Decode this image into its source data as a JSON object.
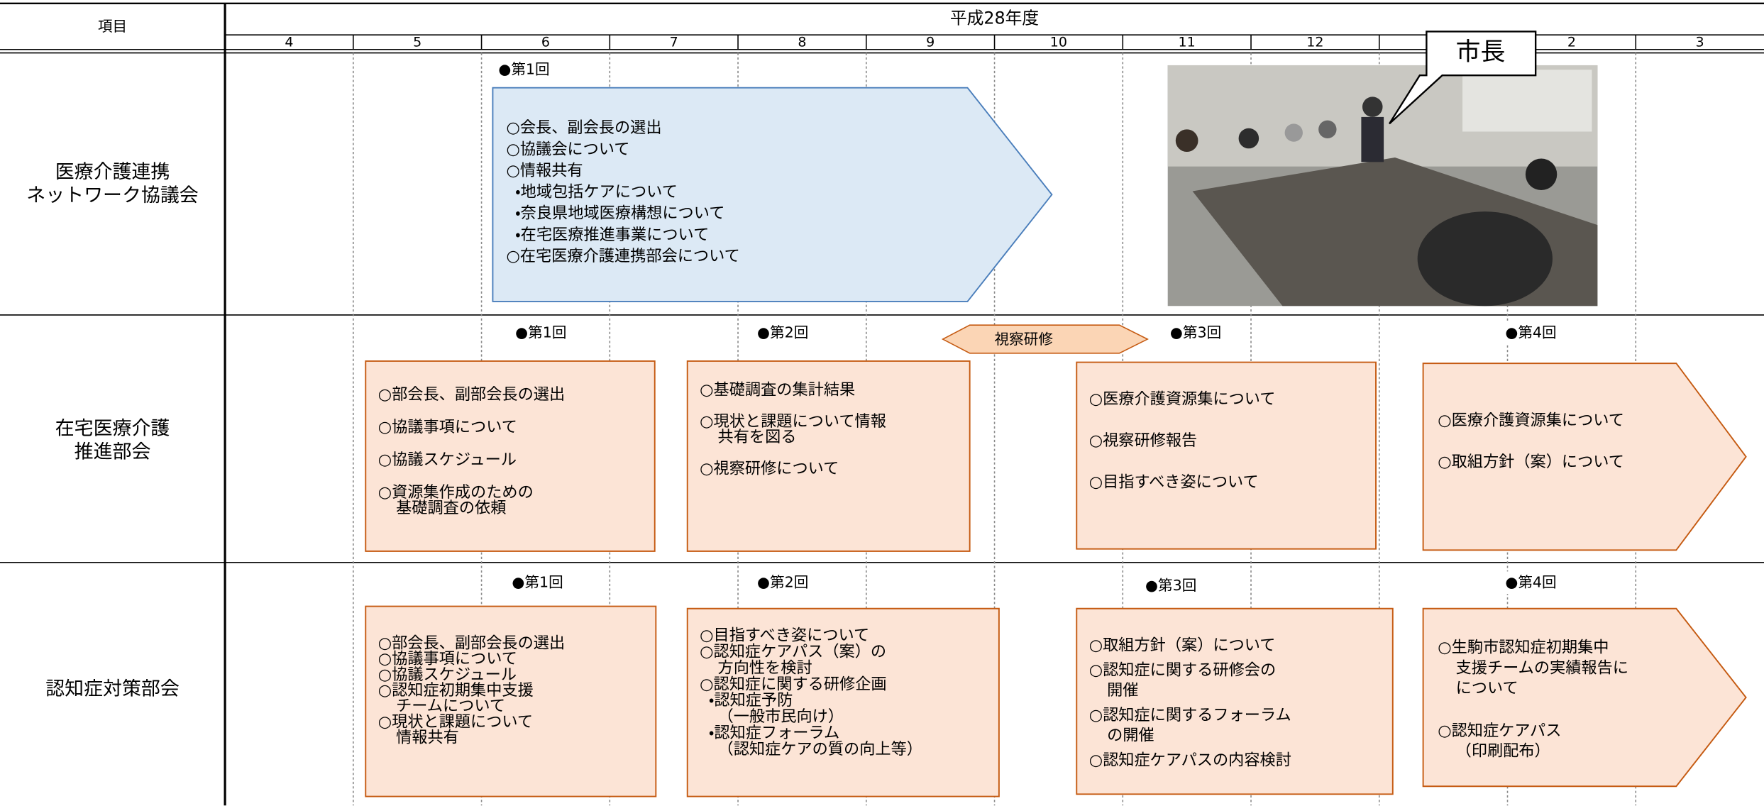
{
  "header": {
    "item": "項目",
    "fiscal_year": "平成28年度",
    "months": [
      "4",
      "5",
      "6",
      "7",
      "8",
      "9",
      "10",
      "11",
      "12",
      null,
      "2",
      "3"
    ]
  },
  "rows": [
    {
      "label": [
        "医療介護連携",
        "ネットワーク協議会"
      ],
      "meetings": [
        "●第1回"
      ],
      "callout": "市長",
      "boxes": [
        {
          "items": [
            [
              "○会長、副会長の選出"
            ],
            [
              "○協議会について"
            ],
            [
              "○情報共有"
            ],
            [
              "・地域包括ケアについて"
            ],
            [
              "・奈良県地域医療構想について"
            ],
            [
              "・在宅医療推進事業について"
            ],
            [
              "○在宅医療介護連携部会について"
            ]
          ]
        }
      ]
    },
    {
      "label": [
        "在宅医療介護",
        "推進部会"
      ],
      "meetings": [
        "●第1回",
        "●第2回",
        "●第3回",
        "●第4回"
      ],
      "tour": "視察研修",
      "boxes": [
        {
          "items": [
            [
              "○部会長、副部会長の選出"
            ],
            [
              "○協議事項について"
            ],
            [
              "○協議スケジュール"
            ],
            [
              "○資源集作成のための",
              "基礎調査の依頼"
            ]
          ]
        },
        {
          "items": [
            [
              "○基礎調査の集計結果"
            ],
            [
              "○現状と課題について情報",
              "共有を図る"
            ],
            [
              "○視察研修について"
            ]
          ]
        },
        {
          "items": [
            [
              "○医療介護資源集について"
            ],
            [
              "○視察研修報告"
            ],
            [
              "○目指すべき姿について"
            ]
          ]
        },
        {
          "items": [
            [
              "○医療介護資源集について"
            ],
            [
              "○取組方針（案）について"
            ]
          ]
        }
      ]
    },
    {
      "label": [
        "認知症対策部会"
      ],
      "meetings": [
        "●第1回",
        "●第2回",
        "●第3回",
        "●第4回"
      ],
      "boxes": [
        {
          "items": [
            [
              "○部会長、副部会長の選出"
            ],
            [
              "○協議事項について"
            ],
            [
              "○協議スケジュール"
            ],
            [
              "○認知症初期集中支援",
              "チームについて"
            ],
            [
              "○現状と課題について",
              "情報共有"
            ]
          ]
        },
        {
          "items": [
            [
              "○目指すべき姿について"
            ],
            [
              "○認知症ケアパス（案）の",
              "方向性を検討"
            ],
            [
              "○認知症に関する研修企画"
            ],
            [
              "・認知症予防",
              "（一般市民向け）"
            ],
            [
              "・認知症フォーラム",
              "（認知症ケアの質の向上等）"
            ]
          ]
        },
        {
          "items": [
            [
              "○取組方針（案）について"
            ],
            [
              "○認知症に関する研修会の",
              "開催"
            ],
            [
              "○認知症に関するフォーラム",
              "の開催"
            ],
            [
              "○認知症ケアパスの内容検討"
            ]
          ]
        },
        {
          "items": [
            [
              "○生駒市認知症初期集中",
              "支援チームの実績報告に",
              "について"
            ],
            [
              "○認知症ケアパス",
              "（印刷配布）"
            ]
          ]
        }
      ]
    }
  ]
}
